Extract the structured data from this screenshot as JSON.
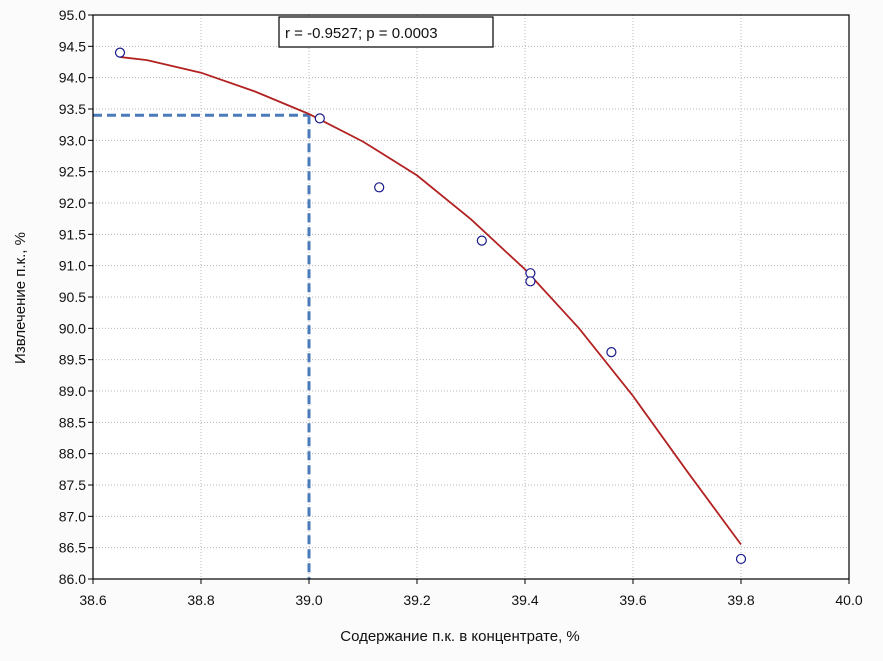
{
  "chart_data": {
    "type": "scatter",
    "title": "",
    "xlabel": "Содержание п.к. в концентрате, %",
    "ylabel": "Извлечение п.к., %",
    "xlim": [
      38.6,
      40.0
    ],
    "ylim": [
      86.0,
      95.0
    ],
    "x_ticks": [
      38.6,
      38.8,
      39.0,
      39.2,
      39.4,
      39.6,
      39.8,
      40.0
    ],
    "x_tick_labels": [
      "38.6",
      "38.8",
      "39.0",
      "39.2",
      "39.4",
      "39.6",
      "39.8",
      "40.0"
    ],
    "y_ticks": [
      86.0,
      86.5,
      87.0,
      87.5,
      88.0,
      88.5,
      89.0,
      89.5,
      90.0,
      90.5,
      91.0,
      91.5,
      92.0,
      92.5,
      93.0,
      93.5,
      94.0,
      94.5,
      95.0
    ],
    "y_tick_labels": [
      "86.0",
      "86.5",
      "87.0",
      "87.5",
      "88.0",
      "88.5",
      "89.0",
      "89.5",
      "90.0",
      "90.5",
      "91.0",
      "91.5",
      "92.0",
      "92.5",
      "93.0",
      "93.5",
      "94.0",
      "94.5",
      "95.0"
    ],
    "grid": true,
    "points": [
      {
        "x": 38.65,
        "y": 94.4
      },
      {
        "x": 39.02,
        "y": 93.35
      },
      {
        "x": 39.13,
        "y": 92.25
      },
      {
        "x": 39.32,
        "y": 91.4
      },
      {
        "x": 39.41,
        "y": 90.88
      },
      {
        "x": 39.41,
        "y": 90.75
      },
      {
        "x": 39.56,
        "y": 89.62
      },
      {
        "x": 39.8,
        "y": 86.32
      }
    ],
    "fit_curve": [
      {
        "x": 38.65,
        "y": 94.33
      },
      {
        "x": 38.7,
        "y": 94.28
      },
      {
        "x": 38.8,
        "y": 94.08
      },
      {
        "x": 38.9,
        "y": 93.78
      },
      {
        "x": 39.0,
        "y": 93.42
      },
      {
        "x": 39.1,
        "y": 92.98
      },
      {
        "x": 39.2,
        "y": 92.44
      },
      {
        "x": 39.3,
        "y": 91.74
      },
      {
        "x": 39.4,
        "y": 90.94
      },
      {
        "x": 39.5,
        "y": 90.0
      },
      {
        "x": 39.6,
        "y": 88.92
      },
      {
        "x": 39.7,
        "y": 87.72
      },
      {
        "x": 39.8,
        "y": 86.55
      }
    ],
    "reference_lines": {
      "x": 39.0,
      "y": 93.4
    },
    "annotation": "r = -0.9527; p = 0.0003",
    "colors": {
      "curve": "#b22222",
      "points": "#1a1a8c",
      "reference": "#4a7ab8",
      "grid": "#b8b8b8",
      "frame": "#000000"
    }
  }
}
